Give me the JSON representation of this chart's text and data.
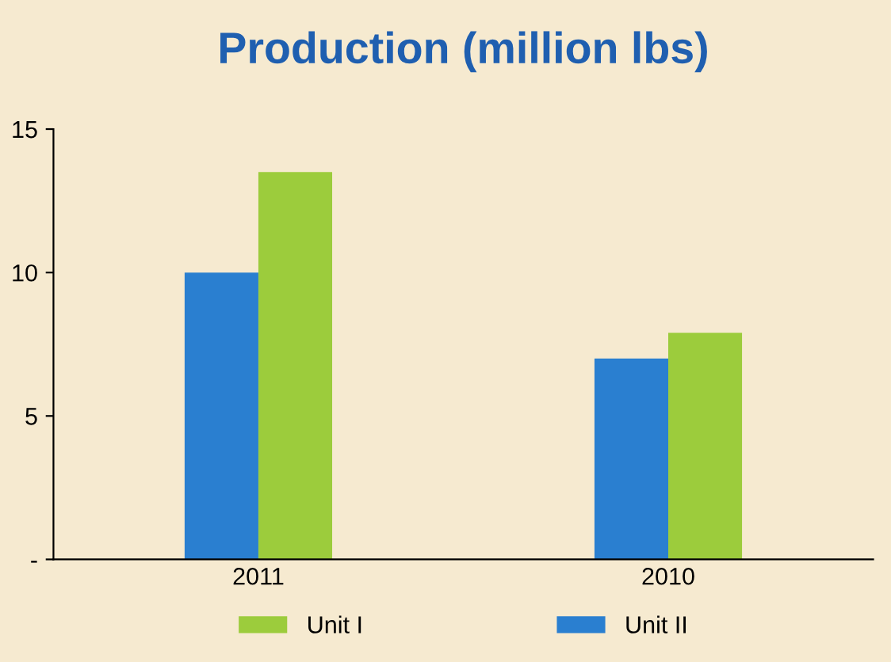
{
  "chart_data": {
    "type": "bar",
    "title": "Production (million lbs)",
    "categories": [
      "2011",
      "2010"
    ],
    "series": [
      {
        "name": "Unit II",
        "color": "#2a7fd0",
        "values": [
          10,
          7
        ]
      },
      {
        "name": "Unit I",
        "color": "#9ccc3c",
        "values": [
          13.5,
          7.9
        ]
      }
    ],
    "ylim": [
      0,
      15
    ],
    "yticks": [
      {
        "value": 0,
        "label": "-"
      },
      5,
      10,
      15
    ],
    "grid": false,
    "legend": "bottom"
  }
}
